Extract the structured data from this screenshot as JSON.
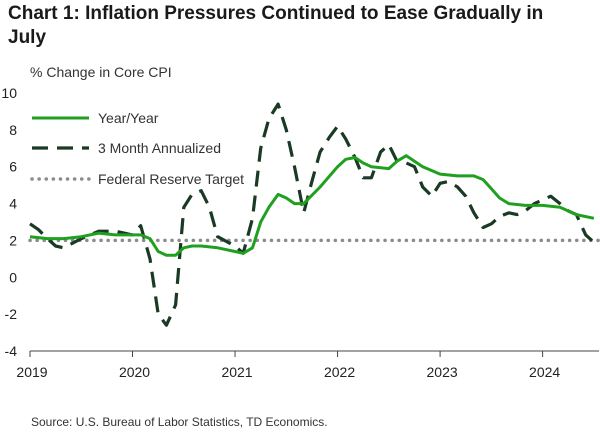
{
  "chart_data": {
    "type": "line",
    "title": "Chart 1: Inflation Pressures Continued to Ease Gradually in July",
    "ylabel": "% Change in Core CPI",
    "xlabel": "",
    "source": "Source: U.S. Bureau of Labor Statistics, TD Economics.",
    "ylim": [
      -4,
      10
    ],
    "yticks": [
      -4,
      -2,
      0,
      2,
      4,
      6,
      8,
      10
    ],
    "xlim": [
      2019.0,
      2024.55
    ],
    "xticks": [
      2019,
      2020,
      2021,
      2022,
      2023,
      2024
    ],
    "legend_position": "top-left",
    "grid": false,
    "series": [
      {
        "name": "Year/Year",
        "color": "#1fa01f",
        "style": "solid",
        "x": [
          2019.0,
          2019.17,
          2019.33,
          2019.5,
          2019.67,
          2019.83,
          2020.0,
          2020.08,
          2020.17,
          2020.25,
          2020.33,
          2020.42,
          2020.5,
          2020.58,
          2020.67,
          2020.83,
          2021.0,
          2021.08,
          2021.17,
          2021.25,
          2021.33,
          2021.42,
          2021.5,
          2021.58,
          2021.67,
          2021.83,
          2022.0,
          2022.08,
          2022.17,
          2022.25,
          2022.33,
          2022.5,
          2022.58,
          2022.67,
          2022.75,
          2022.83,
          2023.0,
          2023.17,
          2023.33,
          2023.42,
          2023.5,
          2023.58,
          2023.67,
          2023.83,
          2024.0,
          2024.17,
          2024.33,
          2024.5
        ],
        "y": [
          2.2,
          2.1,
          2.1,
          2.2,
          2.4,
          2.3,
          2.3,
          2.3,
          2.1,
          1.4,
          1.2,
          1.2,
          1.6,
          1.7,
          1.7,
          1.6,
          1.4,
          1.3,
          1.6,
          3.0,
          3.8,
          4.5,
          4.3,
          4.0,
          4.0,
          4.9,
          6.0,
          6.4,
          6.5,
          6.2,
          6.0,
          5.9,
          6.3,
          6.6,
          6.3,
          6.0,
          5.6,
          5.5,
          5.5,
          5.3,
          4.8,
          4.3,
          4.0,
          3.9,
          3.9,
          3.8,
          3.4,
          3.2
        ]
      },
      {
        "name": "3 Month Annualized",
        "color": "#1a3a24",
        "style": "dashed",
        "x": [
          2019.0,
          2019.08,
          2019.17,
          2019.25,
          2019.33,
          2019.5,
          2019.67,
          2019.83,
          2020.0,
          2020.08,
          2020.17,
          2020.25,
          2020.33,
          2020.42,
          2020.5,
          2020.58,
          2020.67,
          2020.75,
          2020.83,
          2021.0,
          2021.08,
          2021.17,
          2021.25,
          2021.33,
          2021.42,
          2021.5,
          2021.58,
          2021.67,
          2021.75,
          2021.83,
          2021.92,
          2022.0,
          2022.08,
          2022.17,
          2022.25,
          2022.33,
          2022.42,
          2022.5,
          2022.58,
          2022.67,
          2022.75,
          2022.83,
          2022.92,
          2023.0,
          2023.08,
          2023.17,
          2023.25,
          2023.33,
          2023.42,
          2023.5,
          2023.58,
          2023.67,
          2023.75,
          2023.83,
          2023.92,
          2024.0,
          2024.08,
          2024.17,
          2024.25,
          2024.33,
          2024.42,
          2024.5
        ],
        "y": [
          2.9,
          2.6,
          2.1,
          1.7,
          1.6,
          2.1,
          2.5,
          2.5,
          2.3,
          2.8,
          1.0,
          -2.0,
          -2.6,
          -1.5,
          3.8,
          4.5,
          4.7,
          3.8,
          2.2,
          1.7,
          1.3,
          3.2,
          7.0,
          8.6,
          9.4,
          8.0,
          6.0,
          3.5,
          5.2,
          6.8,
          7.6,
          8.2,
          7.5,
          6.5,
          5.4,
          5.4,
          6.8,
          7.2,
          6.3,
          6.2,
          6.0,
          4.9,
          4.4,
          5.1,
          5.2,
          4.9,
          4.4,
          3.5,
          2.7,
          2.9,
          3.3,
          3.5,
          3.4,
          3.6,
          4.0,
          4.2,
          4.4,
          4.0,
          3.6,
          3.4,
          2.3,
          1.9
        ]
      },
      {
        "name": "Federal Reserve Target",
        "color": "#8c8c8c",
        "style": "dotted",
        "x": [
          2019.0,
          2024.55
        ],
        "y": [
          2.0,
          2.0
        ]
      }
    ]
  }
}
